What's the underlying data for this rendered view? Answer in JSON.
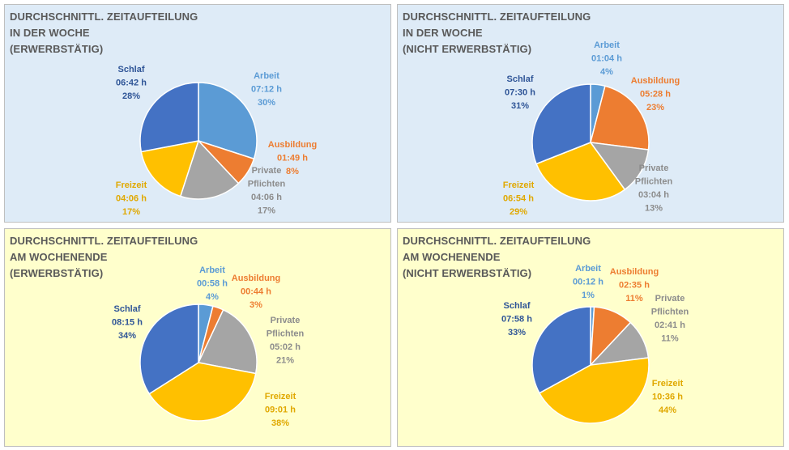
{
  "colors": {
    "arbeit": "#5b9bd5",
    "ausbildung": "#ed7d31",
    "private": "#a5a5a5",
    "freizeit": "#ffc000",
    "schlaf": "#4472c4",
    "label_private": "#8c8c8c",
    "label_freizeit": "#e0a800",
    "label_schlaf": "#2f5597"
  },
  "chart_data": [
    {
      "type": "pie",
      "title": "DURCHSCHNITTL. ZEITAUFTEILUNG\nIN DER WOCHE\n(ERWERBSTÄTIG)",
      "slices": [
        {
          "name": "Arbeit",
          "time": "07:12 h",
          "pct_label": "30%",
          "value": 30
        },
        {
          "name": "Ausbildung",
          "time": "01:49 h",
          "pct_label": "8%",
          "value": 8
        },
        {
          "name": "Private\nPflichten",
          "time": "04:06 h",
          "pct_label": "17%",
          "value": 17
        },
        {
          "name": "Freizeit",
          "time": "04:06 h",
          "pct_label": "17%",
          "value": 17
        },
        {
          "name": "Schlaf",
          "time": "06:42 h",
          "pct_label": "28%",
          "value": 28
        }
      ]
    },
    {
      "type": "pie",
      "title": "DURCHSCHNITTL. ZEITAUFTEILUNG\nIN DER WOCHE\n(NICHT ERWERBSTÄTIG)",
      "slices": [
        {
          "name": "Arbeit",
          "time": "01:04 h",
          "pct_label": "4%",
          "value": 4
        },
        {
          "name": "Ausbildung",
          "time": "05:28 h",
          "pct_label": "23%",
          "value": 23
        },
        {
          "name": "Private\nPflichten",
          "time": "03:04 h",
          "pct_label": "13%",
          "value": 13
        },
        {
          "name": "Freizeit",
          "time": "06:54 h",
          "pct_label": "29%",
          "value": 29
        },
        {
          "name": "Schlaf",
          "time": "07:30 h",
          "pct_label": "31%",
          "value": 31
        }
      ]
    },
    {
      "type": "pie",
      "title": "DURCHSCHNITTL. ZEITAUFTEILUNG\nAM WOCHENENDE\n(ERWERBSTÄTIG)",
      "slices": [
        {
          "name": "Arbeit",
          "time": "00:58 h",
          "pct_label": "4%",
          "value": 4
        },
        {
          "name": "Ausbildung",
          "time": "00:44 h",
          "pct_label": "3%",
          "value": 3
        },
        {
          "name": "Private\nPflichten",
          "time": "05:02 h",
          "pct_label": "21%",
          "value": 21
        },
        {
          "name": "Freizeit",
          "time": "09:01 h",
          "pct_label": "38%",
          "value": 38
        },
        {
          "name": "Schlaf",
          "time": "08:15 h",
          "pct_label": "34%",
          "value": 34
        }
      ]
    },
    {
      "type": "pie",
      "title": "DURCHSCHNITTL. ZEITAUFTEILUNG\nAM WOCHENENDE\n(NICHT ERWERBSTÄTIG)",
      "slices": [
        {
          "name": "Arbeit",
          "time": "00:12 h",
          "pct_label": "1%",
          "value": 1
        },
        {
          "name": "Ausbildung",
          "time": "02:35 h",
          "pct_label": "11%",
          "value": 11
        },
        {
          "name": "Private\nPflichten",
          "time": "02:41 h",
          "pct_label": "11%",
          "value": 11
        },
        {
          "name": "Freizeit",
          "time": "10:36 h",
          "pct_label": "44%",
          "value": 44
        },
        {
          "name": "Schlaf",
          "time": "07:58 h",
          "pct_label": "33%",
          "value": 33
        }
      ]
    }
  ]
}
